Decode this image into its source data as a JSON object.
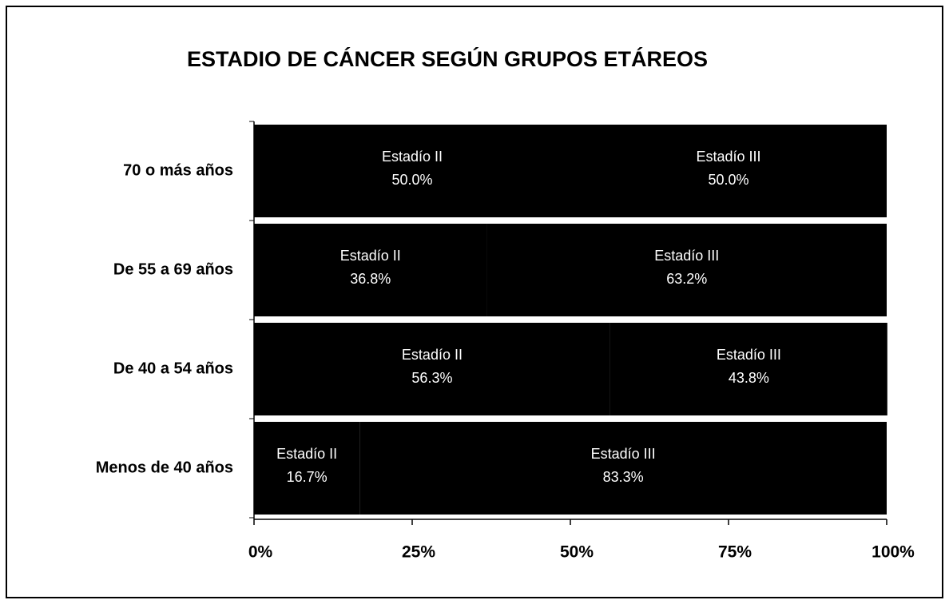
{
  "chart_data": {
    "type": "bar",
    "orientation": "horizontal",
    "stacked": true,
    "title": "ESTADIO DE CÁNCER SEGÚN GRUPOS ETÁREOS",
    "categories": [
      "70 o más años",
      "De 55 a 69 años",
      "De 40 a 54 años",
      "Menos de 40 años"
    ],
    "series": [
      {
        "name": "Estadío II",
        "color": "#000000",
        "values": [
          50,
          36.8,
          56.3,
          16.7
        ],
        "value_labels": [
          "50.0%",
          "36.8%",
          "56.3%",
          "16.7%"
        ]
      },
      {
        "name": "Estadío III",
        "color": "#000000",
        "values": [
          50,
          63.2,
          43.8,
          83.3
        ],
        "value_labels": [
          "50.0%",
          "63.2%",
          "43.8%",
          "83.3%"
        ]
      }
    ],
    "xlim": [
      0,
      100
    ],
    "xticks": [
      {
        "value": 0,
        "label": "0%"
      },
      {
        "value": 25,
        "label": "25%"
      },
      {
        "value": 50,
        "label": "50%"
      },
      {
        "value": 75,
        "label": "75%"
      },
      {
        "value": 100,
        "label": "100%"
      }
    ]
  }
}
